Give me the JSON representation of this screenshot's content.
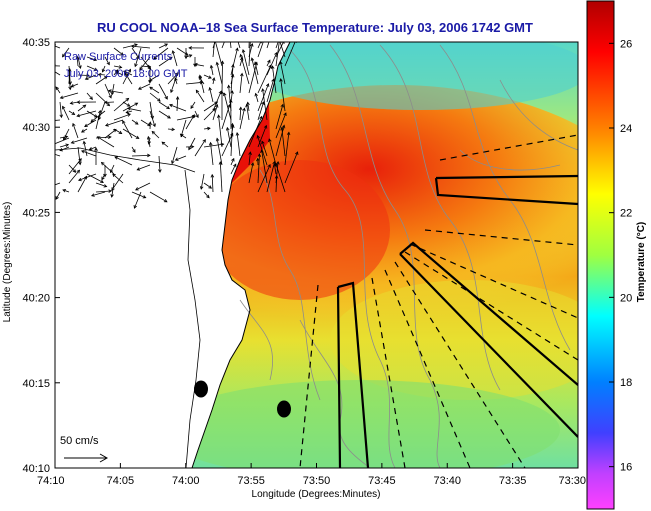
{
  "title": "RU COOL   NOAA–18   Sea Surface Temperature:  July 03, 2006 1742 GMT",
  "overlay": {
    "line1": "Raw Surface Currents",
    "line2": "July 03, 2006 18:00 GMT"
  },
  "vector_scale_label": "50 cm/s",
  "axes": {
    "xlabel": "Longitude (Degrees:Minutes)",
    "ylabel": "Latitude (Degrees:Minutes)",
    "x_ticks": [
      "74:10",
      "74:05",
      "74:00",
      "73:55",
      "73:50",
      "73:45",
      "73:40",
      "73:35",
      "73:30"
    ],
    "y_ticks": [
      "40:35",
      "40:30",
      "40:25",
      "40:20",
      "40:15",
      "40:10"
    ]
  },
  "colorbar": {
    "label": "Temperature (°C)",
    "min": 15,
    "max": 27,
    "ticks": [
      "26",
      "24",
      "22",
      "20",
      "18",
      "16"
    ],
    "tick_values": [
      26,
      24,
      22,
      20,
      18,
      16
    ]
  },
  "colors": {
    "land": "#ffffff",
    "title": "#1a1aa6",
    "warm": "#e8100a",
    "mid": "#f0d020",
    "cool": "#40e0c0"
  }
}
